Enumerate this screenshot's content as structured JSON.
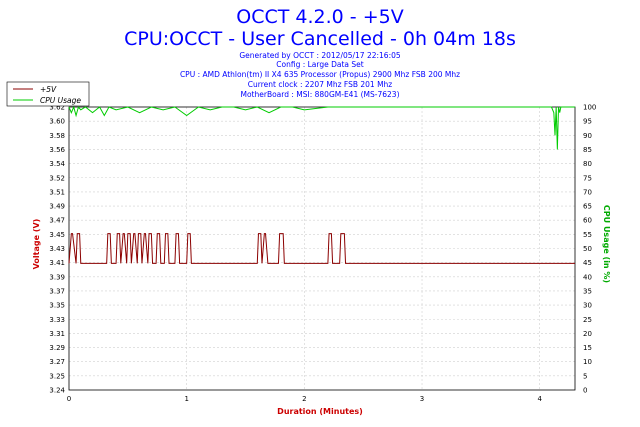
{
  "title_line1": "OCCT 4.2.0 - +5V",
  "title_line2": "CPU:OCCT - User Cancelled - 0h 04m 18s",
  "info_lines": [
    "Generated by OCCT : 2012/05/17 22:16:05",
    "Config : Large Data Set",
    "CPU : AMD Athlon(tm) II X4 635 Processor (Propus) 2900 Mhz FSB 200 Mhz",
    "Current clock : 2207 Mhz FSB 201 Mhz",
    "MotherBoard : MSI: 880GM-E41 (MS-7623)"
  ],
  "colors": {
    "title": "#0000ff",
    "voltage": "#8b0000",
    "cpu": "#00cc00",
    "grid": "#d0d0d0",
    "voltage_axis_label": "#cc0000",
    "cpu_axis_label": "#00aa00"
  },
  "chart_data": {
    "type": "line",
    "xlabel": "Duration (Minutes)",
    "ylabel": "Voltage (V)",
    "ylabel_right": "CPU Usage (in %)",
    "xlim": [
      0,
      4.3
    ],
    "ylim": [
      3.24,
      3.62
    ],
    "ylim_right": [
      0,
      100
    ],
    "x_ticks": [
      0,
      1,
      2,
      3,
      4
    ],
    "x_tick_labels": [
      "0",
      "1",
      "2",
      "3",
      "4"
    ],
    "y_ticks": [
      3.24,
      3.25,
      3.27,
      3.29,
      3.31,
      3.33,
      3.35,
      3.37,
      3.39,
      3.41,
      3.43,
      3.45,
      3.47,
      3.49,
      3.51,
      3.52,
      3.54,
      3.56,
      3.58,
      3.6,
      3.62
    ],
    "y_tick_labels": [
      "3.24",
      "3.25",
      "3.27",
      "3.29",
      "3.31",
      "3.33",
      "3.35",
      "3.37",
      "3.39",
      "3.41",
      "3.43",
      "3.45",
      "3.47",
      "3.49",
      "3.51",
      "3.52",
      "3.54",
      "3.56",
      "3.58",
      "3.60",
      "3.62"
    ],
    "y_ticks_right": [
      0,
      5,
      10,
      15,
      20,
      25,
      30,
      35,
      40,
      45,
      50,
      55,
      60,
      65,
      70,
      75,
      80,
      85,
      90,
      95,
      100
    ],
    "grid": true,
    "legend_position": "top-left",
    "series": [
      {
        "name": "+5V",
        "axis": "left",
        "x": [
          0,
          0.02,
          0.03,
          0.06,
          0.07,
          0.09,
          0.1,
          0.13,
          0.32,
          0.33,
          0.35,
          0.36,
          0.4,
          0.41,
          0.43,
          0.44,
          0.46,
          0.47,
          0.49,
          0.5,
          0.52,
          0.53,
          0.55,
          0.56,
          0.58,
          0.59,
          0.61,
          0.62,
          0.64,
          0.65,
          0.67,
          0.68,
          0.7,
          0.71,
          0.74,
          0.75,
          0.77,
          0.78,
          0.81,
          0.82,
          0.84,
          0.85,
          0.9,
          0.91,
          0.93,
          0.94,
          1.0,
          1.01,
          1.03,
          1.04,
          1.6,
          1.61,
          1.63,
          1.64,
          1.66,
          1.67,
          1.69,
          1.7,
          1.78,
          1.79,
          1.82,
          1.83,
          2.2,
          2.21,
          2.23,
          2.24,
          2.3,
          2.31,
          2.34,
          2.35,
          4.3
        ],
        "y": [
          3.41,
          3.45,
          3.45,
          3.41,
          3.45,
          3.45,
          3.41,
          3.41,
          3.41,
          3.45,
          3.45,
          3.41,
          3.41,
          3.45,
          3.45,
          3.41,
          3.45,
          3.45,
          3.41,
          3.45,
          3.45,
          3.41,
          3.45,
          3.45,
          3.41,
          3.45,
          3.45,
          3.41,
          3.45,
          3.45,
          3.41,
          3.45,
          3.45,
          3.41,
          3.41,
          3.45,
          3.45,
          3.41,
          3.41,
          3.45,
          3.45,
          3.41,
          3.41,
          3.45,
          3.45,
          3.41,
          3.41,
          3.45,
          3.45,
          3.41,
          3.41,
          3.45,
          3.45,
          3.41,
          3.45,
          3.45,
          3.41,
          3.41,
          3.41,
          3.45,
          3.45,
          3.41,
          3.41,
          3.45,
          3.45,
          3.41,
          3.41,
          3.45,
          3.45,
          3.41,
          3.41
        ]
      },
      {
        "name": "CPU Usage",
        "axis": "right",
        "x": [
          0,
          0.02,
          0.04,
          0.06,
          0.08,
          0.1,
          0.14,
          0.2,
          0.26,
          0.3,
          0.34,
          0.4,
          0.5,
          0.6,
          0.7,
          0.8,
          0.9,
          1.0,
          1.1,
          1.2,
          1.3,
          1.4,
          1.5,
          1.6,
          1.7,
          1.8,
          1.9,
          2.0,
          2.2,
          2.4,
          2.6,
          2.8,
          3.0,
          3.2,
          3.4,
          3.6,
          3.8,
          4.0,
          4.1,
          4.12,
          4.13,
          4.14,
          4.15,
          4.16,
          4.17,
          4.18,
          4.2,
          4.25,
          4.3
        ],
        "y": [
          100,
          98,
          100,
          97,
          100,
          99,
          100,
          98,
          100,
          97,
          100,
          99,
          100,
          98,
          100,
          99,
          100,
          97,
          100,
          99,
          100,
          100,
          99,
          100,
          98,
          100,
          100,
          99,
          100,
          100,
          100,
          100,
          100,
          100,
          100,
          100,
          100,
          100,
          100,
          98,
          90,
          100,
          85,
          100,
          98,
          100,
          100,
          100,
          100
        ]
      }
    ]
  }
}
